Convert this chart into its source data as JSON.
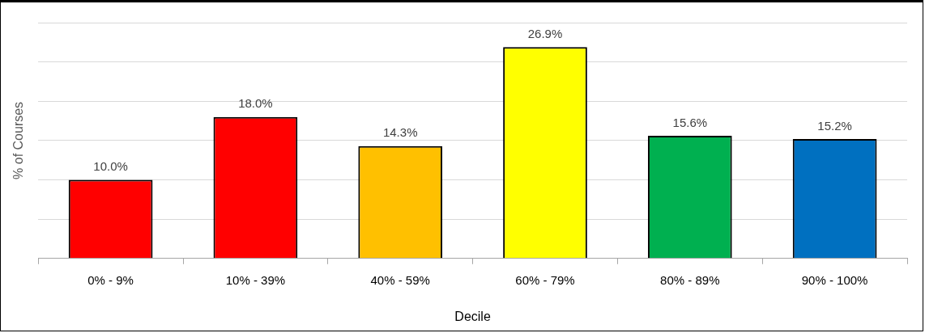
{
  "chart_data": {
    "type": "bar",
    "xlabel": "Decile",
    "ylabel": "% of Courses",
    "categories": [
      "0% - 9%",
      "10% - 39%",
      "40% - 59%",
      "60% - 79%",
      "80% - 89%",
      "90% - 100%"
    ],
    "values": [
      10.0,
      18.0,
      14.3,
      26.9,
      15.6,
      15.2
    ],
    "colors": [
      "#ff0000",
      "#ff0000",
      "#ffc000",
      "#ffff00",
      "#00b050",
      "#0070c0"
    ],
    "value_labels": [
      "10.0%",
      "18.0%",
      "14.3%",
      "26.9%",
      "15.6%",
      "15.2%"
    ],
    "tick_labels": "x",
    "grid": "y",
    "legend": false
  }
}
